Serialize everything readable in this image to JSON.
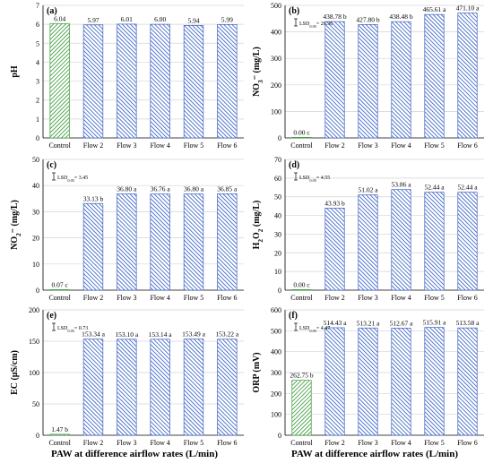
{
  "colors": {
    "green": "#3c9a3c",
    "blue": "#3b63c4",
    "axis": "#000000",
    "grid": "#d4d4d4"
  },
  "x_caption": "PAW at difference airflow rates (L/min)",
  "categories": [
    "Control",
    "Flow 2",
    "Flow 3",
    "Flow 4",
    "Flow 5",
    "Flow 6"
  ],
  "chart_data": [
    {
      "type": "bar",
      "panel": "(a)",
      "ylabel_parts": [
        {
          "t": "pH"
        }
      ],
      "ylim": [
        0,
        7
      ],
      "yticks": [
        0,
        1,
        2,
        3,
        4,
        5,
        6,
        7
      ],
      "grid": true,
      "lsd_parts": [],
      "values": [
        6.04,
        5.97,
        6.01,
        6.0,
        5.94,
        5.99
      ],
      "labels": [
        "6.04",
        "5.97",
        "6.01",
        "6.00",
        "5.94",
        "5.99"
      ],
      "bar_colors": [
        "green",
        "blue",
        "blue",
        "blue",
        "blue",
        "blue"
      ]
    },
    {
      "type": "bar",
      "panel": "(b)",
      "ylabel_parts": [
        {
          "t": "NO"
        },
        {
          "t": "3",
          "sub": true
        },
        {
          "t": "⁻"
        },
        {
          "t": " (mg/L)"
        }
      ],
      "ylim": [
        0,
        500
      ],
      "yticks": [
        0,
        100,
        200,
        300,
        400,
        500
      ],
      "grid": true,
      "lsd_parts": [
        {
          "t": "LSD"
        },
        {
          "t": "0.05",
          "sub": true
        },
        {
          "t": "= 26.36"
        }
      ],
      "values": [
        0.0,
        438.78,
        427.8,
        438.48,
        465.61,
        471.1
      ],
      "labels": [
        "0.00 c",
        "438.78 b",
        "427.80 b",
        "438.48 b",
        "465.61 a",
        "471.10 a"
      ],
      "bar_colors": [
        "green",
        "blue",
        "blue",
        "blue",
        "blue",
        "blue"
      ]
    },
    {
      "type": "bar",
      "panel": "(c)",
      "ylabel_parts": [
        {
          "t": "NO"
        },
        {
          "t": "2",
          "sub": true
        },
        {
          "t": "⁻"
        },
        {
          "t": " (mg/L)"
        }
      ],
      "ylim": [
        0,
        50
      ],
      "yticks": [
        0,
        10,
        20,
        30,
        40,
        50
      ],
      "grid": true,
      "lsd_parts": [
        {
          "t": "LSD"
        },
        {
          "t": "0.05",
          "sub": true
        },
        {
          "t": "= 3.45"
        }
      ],
      "values": [
        0.07,
        33.13,
        36.8,
        36.76,
        36.8,
        36.85
      ],
      "labels": [
        "0.07 c",
        "33.13 b",
        "36.80 a",
        "36.76 a",
        "36.80 a",
        "36.85 a"
      ],
      "bar_colors": [
        "green",
        "blue",
        "blue",
        "blue",
        "blue",
        "blue"
      ]
    },
    {
      "type": "bar",
      "panel": "(d)",
      "ylabel_parts": [
        {
          "t": "H"
        },
        {
          "t": "2",
          "sub": true
        },
        {
          "t": "O"
        },
        {
          "t": "2",
          "sub": true
        },
        {
          "t": " (mg/L)"
        }
      ],
      "ylim": [
        0,
        70
      ],
      "yticks": [
        0,
        10,
        20,
        30,
        40,
        50,
        60,
        70
      ],
      "grid": true,
      "lsd_parts": [
        {
          "t": "LSD"
        },
        {
          "t": "0.05",
          "sub": true
        },
        {
          "t": "= 4.55"
        }
      ],
      "values": [
        0.0,
        43.93,
        51.02,
        53.86,
        52.44,
        52.44
      ],
      "labels": [
        "0.00 c",
        "43.93 b",
        "51.02 a",
        "53.86 a",
        "52.44 a",
        "52.44 a"
      ],
      "bar_colors": [
        "green",
        "blue",
        "blue",
        "blue",
        "blue",
        "blue"
      ]
    },
    {
      "type": "bar",
      "panel": "(e)",
      "ylabel_parts": [
        {
          "t": "EC (μS/cm)"
        }
      ],
      "ylim": [
        0,
        200
      ],
      "yticks": [
        0,
        50,
        100,
        150,
        200
      ],
      "grid": true,
      "lsd_parts": [
        {
          "t": "LSD"
        },
        {
          "t": "0.05",
          "sub": true
        },
        {
          "t": "= 0.73"
        }
      ],
      "values": [
        1.47,
        153.34,
        153.1,
        153.14,
        153.49,
        153.22
      ],
      "labels": [
        "1.47 b",
        "153.34 a",
        "153.10 a",
        "153.14 a",
        "153.49 a",
        "153.22 a"
      ],
      "bar_colors": [
        "green",
        "blue",
        "blue",
        "blue",
        "blue",
        "blue"
      ]
    },
    {
      "type": "bar",
      "panel": "(f)",
      "ylabel_parts": [
        {
          "t": "ORP (mV)"
        }
      ],
      "ylim": [
        0,
        600
      ],
      "yticks": [
        0,
        100,
        200,
        300,
        400,
        500,
        600
      ],
      "grid": true,
      "lsd_parts": [
        {
          "t": "LSD"
        },
        {
          "t": "0.05",
          "sub": true
        },
        {
          "t": "= 4.47"
        }
      ],
      "values": [
        262.75,
        514.43,
        513.21,
        512.67,
        515.91,
        513.58
      ],
      "labels": [
        "262.75 b",
        "514.43 a",
        "513.21 a",
        "512.67 a",
        "515.91 a",
        "513.58 a"
      ],
      "bar_colors": [
        "green",
        "blue",
        "blue",
        "blue",
        "blue",
        "blue"
      ]
    }
  ]
}
